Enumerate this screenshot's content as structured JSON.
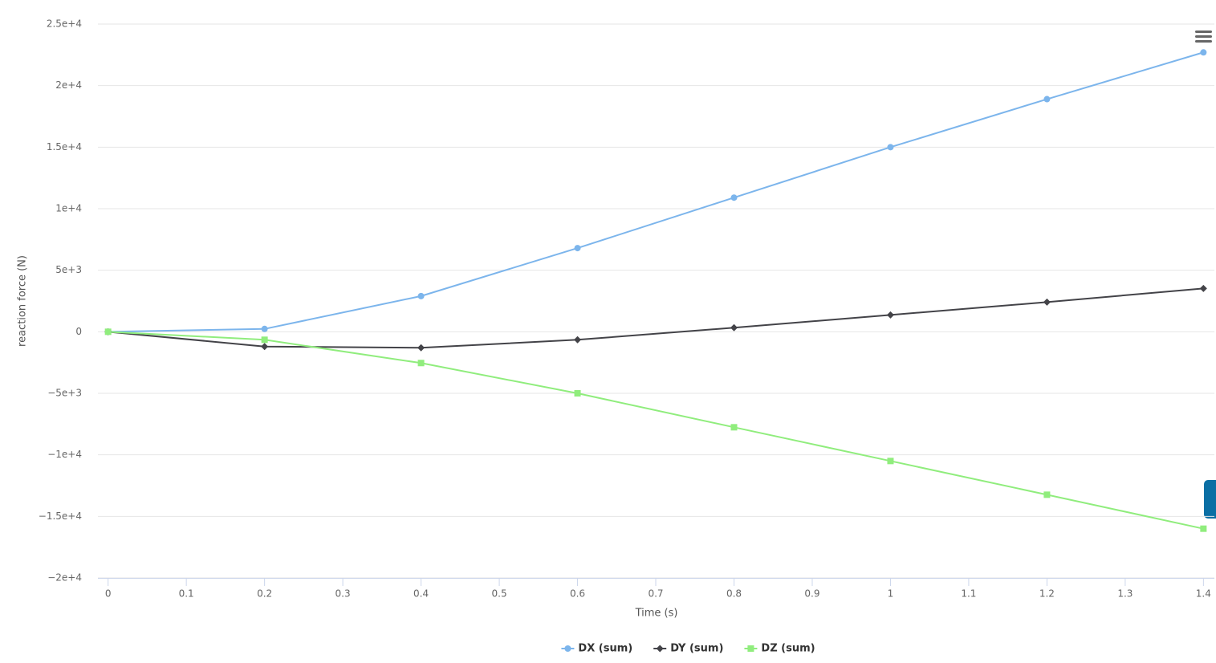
{
  "chart_data": {
    "type": "line",
    "x_label": "Time (s)",
    "y_label": "reaction force (N)",
    "x": [
      0,
      0.2,
      0.4,
      0.6,
      0.8,
      1,
      1.2,
      1.4
    ],
    "series": [
      {
        "name": "DX (sum)",
        "color": "#7cb5ec",
        "symbol": "circle",
        "values": [
          0,
          230,
          2900,
          6800,
          10900,
          15000,
          18900,
          22700
        ]
      },
      {
        "name": "DY (sum)",
        "color": "#434348",
        "symbol": "diamond",
        "values": [
          0,
          -1200,
          -1300,
          -650,
          330,
          1370,
          2410,
          3520
        ]
      },
      {
        "name": "DZ (sum)",
        "color": "#90ed7d",
        "symbol": "square",
        "values": [
          0,
          -650,
          -2540,
          -5000,
          -7760,
          -10500,
          -13240,
          -16000
        ]
      }
    ],
    "xlim": [
      -0.013,
      1.414
    ],
    "xticks": [
      0,
      0.1,
      0.2,
      0.3,
      0.4,
      0.5,
      0.6,
      0.7,
      0.8,
      0.9,
      1,
      1.1,
      1.2,
      1.3,
      1.4
    ],
    "ylim": [
      -20000,
      25000
    ],
    "yticks": [
      {
        "value": -20000,
        "label": "−2e+4"
      },
      {
        "value": -15000,
        "label": "−1.5e+4"
      },
      {
        "value": -10000,
        "label": "−1e+4"
      },
      {
        "value": -5000,
        "label": "−5e+3"
      },
      0,
      {
        "value": 5000,
        "label": "5e+3"
      },
      {
        "value": 10000,
        "label": "1e+4"
      },
      {
        "value": 15000,
        "label": "1.5e+4"
      },
      {
        "value": 20000,
        "label": "2e+4"
      },
      {
        "value": 25000,
        "label": "2.5e+4"
      }
    ],
    "grid": true,
    "legend": "bottom"
  }
}
